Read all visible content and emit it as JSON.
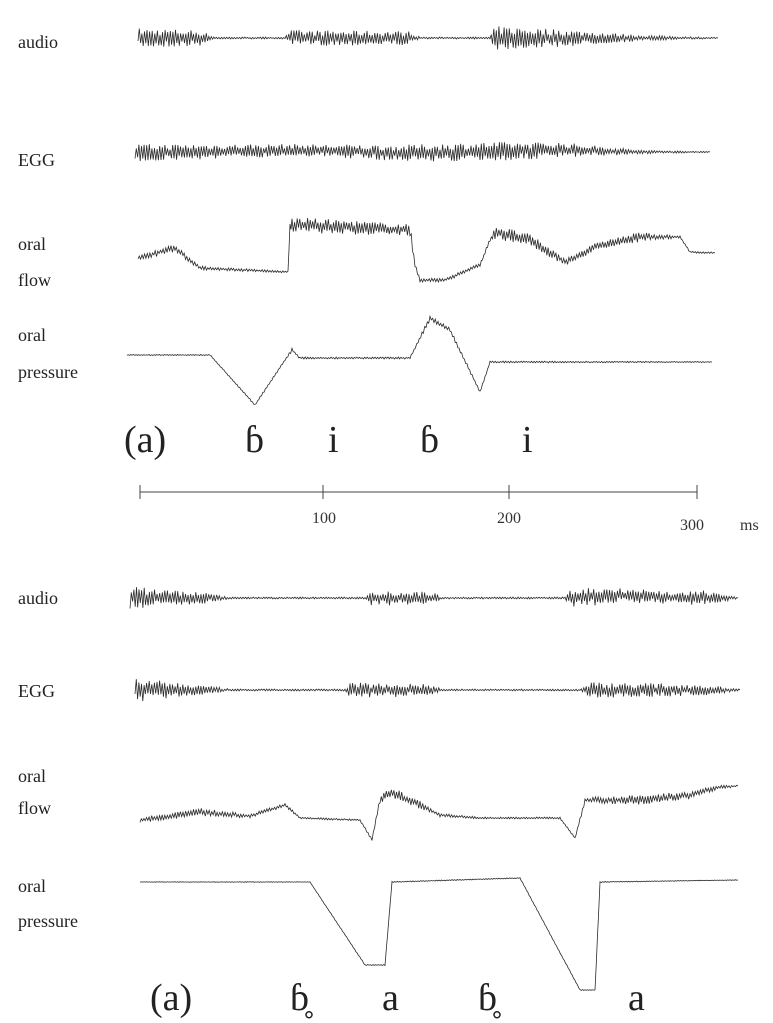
{
  "panels": [
    {
      "tracks": [
        [
          "audio"
        ],
        [
          "EGG"
        ],
        [
          "oral",
          "flow"
        ],
        [
          "oral",
          "pressure"
        ]
      ],
      "caption": "(a)",
      "segments": [
        "ɓ",
        "i",
        "ɓ",
        "i"
      ]
    },
    {
      "tracks": [
        [
          "audio"
        ],
        [
          "EGG"
        ],
        [
          "oral",
          "flow"
        ],
        [
          "oral",
          "pressure"
        ]
      ],
      "caption": "(a)",
      "segments": [
        "ɓ̥",
        "a",
        "ɓ̥",
        "a"
      ]
    }
  ],
  "time_axis": {
    "ticks": [
      "100",
      "200",
      "300"
    ],
    "unit": "ms"
  }
}
